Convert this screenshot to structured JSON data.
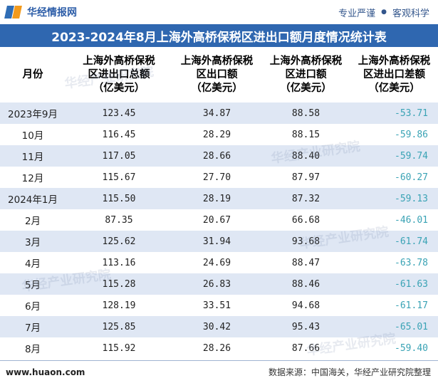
{
  "header": {
    "brand_name": "华经情报网",
    "slogan_left": "专业严谨",
    "slogan_right": "客观科学"
  },
  "title": "2023-2024年8月上海外高桥保税区进出口额月度情况统计表",
  "table": {
    "columns": [
      "月份",
      "上海外高桥保税区进出口总额（亿美元）",
      "上海外高桥保税区出口额（亿美元）",
      "上海外高桥保税区进口额（亿美元）",
      "上海外高桥保税区进出口差额（亿美元）"
    ],
    "column_lines": [
      [
        "月份"
      ],
      [
        "上海外高桥保税",
        "区进出口总额",
        "（亿美元）"
      ],
      [
        "上海外高桥保税",
        "区出口额",
        "（亿美元）"
      ],
      [
        "上海外高桥保税",
        "区进口额",
        "（亿美元）"
      ],
      [
        "上海外高桥保税",
        "区进出口差额",
        "（亿美元）"
      ]
    ],
    "rows": [
      [
        "2023年9月",
        "123.45",
        "34.87",
        "88.58",
        "-53.71"
      ],
      [
        "10月",
        "116.45",
        "28.29",
        "88.15",
        "-59.86"
      ],
      [
        "11月",
        "117.05",
        "28.66",
        "88.40",
        "-59.74"
      ],
      [
        "12月",
        "115.67",
        "27.70",
        "87.97",
        "-60.27"
      ],
      [
        "2024年1月",
        "115.50",
        "28.19",
        "87.32",
        "-59.13"
      ],
      [
        "2月",
        "87.35",
        "20.67",
        "66.68",
        "-46.01"
      ],
      [
        "3月",
        "125.62",
        "31.94",
        "93.68",
        "-61.74"
      ],
      [
        "4月",
        "113.16",
        "24.69",
        "88.47",
        "-63.78"
      ],
      [
        "5月",
        "115.28",
        "26.83",
        "88.46",
        "-61.63"
      ],
      [
        "6月",
        "128.19",
        "33.51",
        "94.68",
        "-61.17"
      ],
      [
        "7月",
        "125.85",
        "30.42",
        "95.43",
        "-65.01"
      ],
      [
        "8月",
        "115.92",
        "28.26",
        "87.66",
        "-59.40"
      ]
    ]
  },
  "footer": {
    "url": "www.huaon.com",
    "source": "数据来源：中国海关，华经产业研究院整理"
  },
  "watermark": "华经产业研究院",
  "colors": {
    "title_bg": "#2f67b0",
    "row_alt_bg": "#dfe7f4",
    "negative_text": "#3aa3b5",
    "brand_blue": "#2f6db5",
    "brand_orange": "#f29a1c"
  }
}
